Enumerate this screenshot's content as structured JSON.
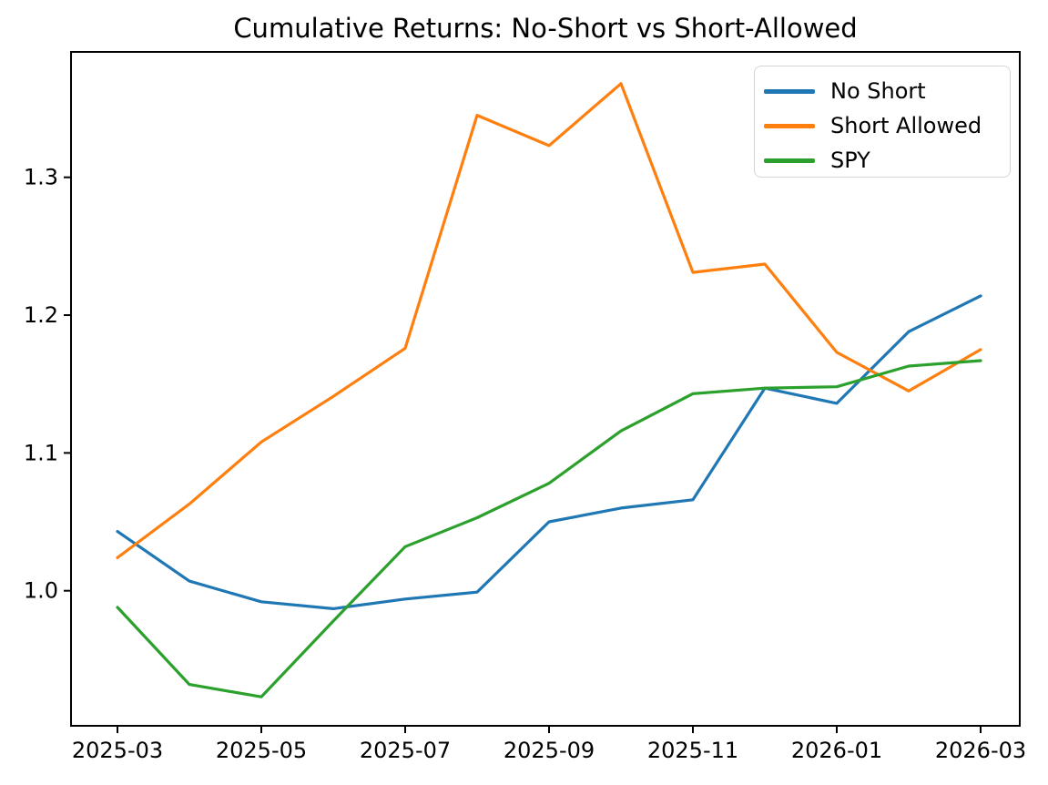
{
  "title": "Cumulative Returns: No-Short vs Short-Allowed",
  "colors": {
    "no_short": "#1f77b4",
    "short_allowed": "#ff7f0e",
    "spy": "#2ca02c",
    "axis": "#000000",
    "legend_border": "#d5d5d5",
    "background": "#ffffff"
  },
  "legend": {
    "items": [
      {
        "label": "No Short",
        "color": "#1f77b4"
      },
      {
        "label": "Short Allowed",
        "color": "#ff7f0e"
      },
      {
        "label": "SPY",
        "color": "#2ca02c"
      }
    ],
    "position": "upper right"
  },
  "chart_data": {
    "type": "line",
    "title": "Cumulative Returns: No-Short vs Short-Allowed",
    "xlabel": "",
    "ylabel": "",
    "x": [
      "2025-03",
      "2025-04",
      "2025-05",
      "2025-06",
      "2025-07",
      "2025-08",
      "2025-09",
      "2025-10",
      "2025-11",
      "2025-12",
      "2026-01",
      "2026-02",
      "2026-03"
    ],
    "series": [
      {
        "name": "No Short",
        "color": "#1f77b4",
        "values": [
          1.043,
          1.007,
          0.992,
          0.987,
          0.994,
          0.999,
          1.05,
          1.06,
          1.066,
          1.147,
          1.136,
          1.188,
          1.214
        ]
      },
      {
        "name": "Short Allowed",
        "color": "#ff7f0e",
        "values": [
          1.024,
          1.063,
          1.108,
          1.141,
          1.176,
          1.345,
          1.323,
          1.368,
          1.231,
          1.237,
          1.173,
          1.145,
          1.175
        ]
      },
      {
        "name": "SPY",
        "color": "#2ca02c",
        "values": [
          0.988,
          0.932,
          0.923,
          0.978,
          1.032,
          1.053,
          1.078,
          1.116,
          1.143,
          1.147,
          1.148,
          1.163,
          1.167
        ]
      }
    ],
    "ylim": [
      0.902,
      1.391
    ],
    "y_ticks": [
      "1.0",
      "1.1",
      "1.2",
      "1.3"
    ],
    "x_tick_labels": [
      "2025-03",
      "2025-05",
      "2025-07",
      "2025-09",
      "2025-11",
      "2026-01",
      "2026-03"
    ],
    "x_tick_indices": [
      0,
      2,
      4,
      6,
      8,
      10,
      12
    ],
    "legend_position": "upper right",
    "grid": false
  }
}
